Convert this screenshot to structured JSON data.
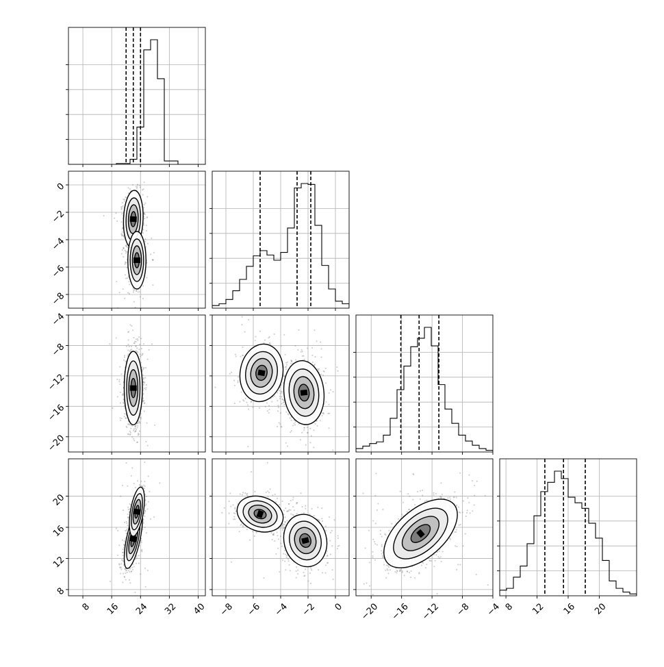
{
  "chart_data": {
    "type": "corner",
    "grid": true,
    "dimensions": 4,
    "ranges": [
      [
        4,
        42
      ],
      [
        -9,
        1
      ],
      [
        -22,
        -4
      ],
      [
        7.2,
        24.8
      ]
    ],
    "y_ticks": {
      "1": [
        0,
        -2,
        -4,
        -6,
        -8
      ],
      "2": [
        -4,
        -8,
        -12,
        -16,
        -20
      ],
      "3": [
        20,
        16,
        12,
        8
      ]
    },
    "x_ticks": {
      "0": [
        8,
        16,
        24,
        32,
        40
      ],
      "1": [
        -8,
        -6,
        -4,
        -2,
        0
      ],
      "2": [
        -20,
        -16,
        -12,
        -8,
        -4
      ],
      "3": [
        8,
        12,
        16,
        20
      ]
    },
    "quantiles": [
      [
        20.0,
        22.0,
        24.0
      ],
      [
        -5.5,
        -2.8,
        -1.8
      ],
      [
        -16.1,
        -13.7,
        -11.1
      ],
      [
        13.0,
        15.4,
        18.2
      ]
    ],
    "histograms": [
      {
        "edges_start": 4,
        "bin_width": 1.9,
        "counts": [
          0,
          0,
          0,
          0,
          0,
          0,
          0,
          1,
          1,
          6,
          44,
          135,
          147,
          101,
          4,
          4,
          0,
          0,
          0,
          0
        ]
      },
      {
        "edges_start": -9,
        "bin_width": 0.5,
        "counts": [
          3,
          5,
          10,
          20,
          33,
          48,
          60,
          66,
          61,
          55,
          64,
          92,
          138,
          143,
          142,
          95,
          49,
          22,
          8,
          5
        ]
      },
      {
        "edges_start": -22,
        "bin_width": 0.9,
        "counts": [
          4,
          7,
          10,
          12,
          20,
          40,
          74,
          102,
          125,
          135,
          148,
          126,
          80,
          51,
          34,
          20,
          13,
          8,
          4,
          2
        ]
      },
      {
        "edges_start": 7.2,
        "bin_width": 0.88,
        "counts": [
          3,
          4,
          10,
          16,
          28,
          43,
          56,
          61,
          67,
          63,
          53,
          50,
          47,
          39,
          31,
          19,
          8,
          4,
          2,
          1
        ]
      }
    ],
    "pairs": [
      {
        "row": 1,
        "col": 0,
        "blobs": [
          {
            "x": 22,
            "y": -2.5,
            "sx": 1.3,
            "sy": 1.0,
            "rho": 0.1,
            "w": 0.65
          },
          {
            "x": 23,
            "y": -5.5,
            "sx": 1.2,
            "sy": 1.0,
            "rho": 0.0,
            "w": 0.35
          }
        ]
      },
      {
        "row": 2,
        "col": 0,
        "blobs": [
          {
            "x": 22,
            "y": -13.6,
            "sx": 1.2,
            "sy": 2.3,
            "rho": 0.0,
            "w": 1.0
          }
        ]
      },
      {
        "row": 3,
        "col": 0,
        "blobs": [
          {
            "x": 22,
            "y": 14.5,
            "sx": 1.2,
            "sy": 1.8,
            "rho": 0.65,
            "w": 0.6
          },
          {
            "x": 23,
            "y": 18,
            "sx": 1.0,
            "sy": 1.5,
            "rho": 0.5,
            "w": 0.4
          }
        ]
      },
      {
        "row": 2,
        "col": 1,
        "blobs": [
          {
            "x": -2.3,
            "y": -14.2,
            "sx": 0.7,
            "sy": 2.0,
            "rho": -0.1,
            "w": 0.65
          },
          {
            "x": -5.4,
            "y": -11.6,
            "sx": 0.75,
            "sy": 1.8,
            "rho": 0.1,
            "w": 0.35
          }
        ]
      },
      {
        "row": 3,
        "col": 1,
        "blobs": [
          {
            "x": -2.2,
            "y": 14.3,
            "sx": 0.75,
            "sy": 1.6,
            "rho": -0.1,
            "w": 0.65
          },
          {
            "x": -5.5,
            "y": 17.7,
            "sx": 0.8,
            "sy": 1.1,
            "rho": -0.2,
            "w": 0.35
          }
        ]
      },
      {
        "row": 3,
        "col": 2,
        "blobs": [
          {
            "x": -13.5,
            "y": 15.2,
            "sx": 2.3,
            "sy": 2.1,
            "rho": 0.55,
            "w": 1.0
          }
        ]
      }
    ],
    "scatter_color": "#7a7a7a",
    "line_color": "#000000",
    "grid_color": "#b0b0b0"
  }
}
